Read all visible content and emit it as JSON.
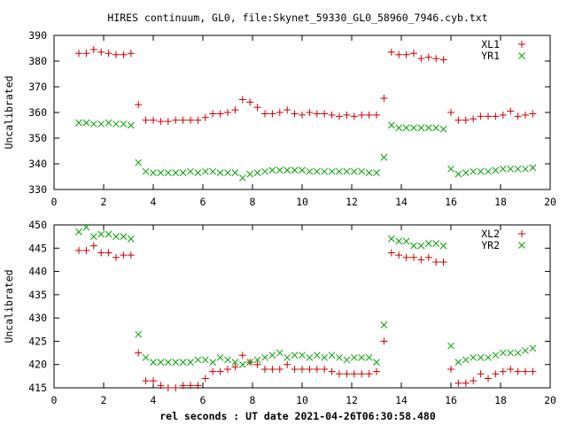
{
  "figure": {
    "title": "HIRES continuum, GL0, file:Skynet_59330_GL0_58960_7946.cyb.txt",
    "xlabel": "rel seconds : UT date 2021-04-26T06:30:58.480"
  },
  "chart_data": [
    {
      "type": "scatter",
      "ylabel": "Uncalibrated",
      "xlim": [
        0,
        20
      ],
      "ylim": [
        330,
        390
      ],
      "xticks": [
        0,
        2,
        4,
        6,
        8,
        10,
        12,
        14,
        16,
        18,
        20
      ],
      "yticks": [
        330,
        340,
        350,
        360,
        370,
        380,
        390
      ],
      "grid": false,
      "legend": "top-right",
      "series": [
        {
          "name": "XL1",
          "marker": "plus",
          "color": "#cc0000",
          "x": [
            1.0,
            1.3,
            1.6,
            1.9,
            2.2,
            2.5,
            2.8,
            3.1,
            3.4,
            3.7,
            4.0,
            4.3,
            4.6,
            4.9,
            5.2,
            5.5,
            5.8,
            6.1,
            6.4,
            6.7,
            7.0,
            7.3,
            7.6,
            7.9,
            8.2,
            8.5,
            8.8,
            9.1,
            9.4,
            9.7,
            10.0,
            10.3,
            10.6,
            10.9,
            11.2,
            11.5,
            11.8,
            12.1,
            12.4,
            12.7,
            13.0,
            13.3,
            13.6,
            13.9,
            14.2,
            14.5,
            14.8,
            15.1,
            15.4,
            15.7,
            16.0,
            16.3,
            16.6,
            16.9,
            17.2,
            17.5,
            17.8,
            18.1,
            18.4,
            18.7,
            19.0,
            19.3
          ],
          "y": [
            383,
            383,
            384.5,
            383.5,
            383,
            382.5,
            382.5,
            383,
            363,
            357,
            357,
            356.5,
            356.5,
            357,
            357,
            357,
            357,
            358,
            359.5,
            359.5,
            360,
            361,
            365,
            364,
            362,
            359.5,
            359.5,
            360,
            361,
            359.5,
            359,
            360,
            359.5,
            359.5,
            359,
            358.5,
            359,
            358.5,
            359,
            359,
            359,
            365.5,
            383.5,
            382.5,
            382.5,
            383,
            381,
            381.5,
            381,
            380.5,
            360,
            357,
            357,
            357.5,
            358.5,
            358.5,
            358.5,
            359,
            360.5,
            358.5,
            359,
            359.5
          ]
        },
        {
          "name": "YR1",
          "marker": "cross",
          "color": "#00a000",
          "x": [
            1.0,
            1.3,
            1.6,
            1.9,
            2.2,
            2.5,
            2.8,
            3.1,
            3.4,
            3.7,
            4.0,
            4.3,
            4.6,
            4.9,
            5.2,
            5.5,
            5.8,
            6.1,
            6.4,
            6.7,
            7.0,
            7.3,
            7.6,
            7.9,
            8.2,
            8.5,
            8.8,
            9.1,
            9.4,
            9.7,
            10.0,
            10.3,
            10.6,
            10.9,
            11.2,
            11.5,
            11.8,
            12.1,
            12.4,
            12.7,
            13.0,
            13.3,
            13.6,
            13.9,
            14.2,
            14.5,
            14.8,
            15.1,
            15.4,
            15.7,
            16.0,
            16.3,
            16.6,
            16.9,
            17.2,
            17.5,
            17.8,
            18.1,
            18.4,
            18.7,
            19.0,
            19.3
          ],
          "y": [
            356,
            356,
            355.5,
            355.5,
            356,
            355.5,
            355.5,
            355,
            340.5,
            337,
            336.5,
            336.5,
            336.5,
            336.5,
            336.5,
            337,
            336.5,
            337,
            337,
            336.5,
            336.5,
            336.5,
            334.5,
            336,
            336.5,
            337,
            337.5,
            337.5,
            337.5,
            337.5,
            337.5,
            337,
            337,
            337,
            337,
            337,
            337,
            337,
            337,
            336.5,
            336.5,
            342.5,
            355,
            354,
            354,
            354,
            354,
            354,
            354,
            353.5,
            338,
            336,
            336.5,
            337,
            337,
            337,
            337.5,
            338,
            338,
            338,
            338,
            338.5
          ]
        }
      ]
    },
    {
      "type": "scatter",
      "ylabel": "Uncalibrated",
      "xlim": [
        0,
        20
      ],
      "ylim": [
        415,
        450
      ],
      "xticks": [
        0,
        2,
        4,
        6,
        8,
        10,
        12,
        14,
        16,
        18,
        20
      ],
      "yticks": [
        415,
        420,
        425,
        430,
        435,
        440,
        445,
        450
      ],
      "grid": false,
      "legend": "top-right",
      "series": [
        {
          "name": "XL2",
          "marker": "plus",
          "color": "#cc0000",
          "x": [
            1.0,
            1.3,
            1.6,
            1.9,
            2.2,
            2.5,
            2.8,
            3.1,
            3.4,
            3.7,
            4.0,
            4.3,
            4.6,
            4.9,
            5.2,
            5.5,
            5.8,
            6.1,
            6.4,
            6.7,
            7.0,
            7.3,
            7.6,
            7.9,
            8.2,
            8.5,
            8.8,
            9.1,
            9.4,
            9.7,
            10.0,
            10.3,
            10.6,
            10.9,
            11.2,
            11.5,
            11.8,
            12.1,
            12.4,
            12.7,
            13.0,
            13.3,
            13.6,
            13.9,
            14.2,
            14.5,
            14.8,
            15.1,
            15.4,
            15.7,
            16.0,
            16.3,
            16.6,
            16.9,
            17.2,
            17.5,
            17.8,
            18.1,
            18.4,
            18.7,
            19.0,
            19.3
          ],
          "y": [
            444.5,
            444.5,
            445.5,
            444,
            444,
            443,
            443.5,
            443.5,
            422.5,
            416.5,
            416.5,
            415.5,
            415,
            415,
            415.5,
            415.5,
            415.5,
            417,
            418.5,
            418.5,
            419,
            419.5,
            422,
            420.5,
            420,
            419,
            419,
            419,
            420,
            419,
            419,
            419,
            419,
            419,
            418.5,
            418,
            418,
            418,
            418,
            418,
            418.5,
            425,
            444,
            443.5,
            443,
            443,
            442.5,
            443,
            442,
            442,
            419,
            416,
            416,
            416.5,
            418,
            417,
            418,
            418.5,
            419,
            418.5,
            418.5,
            418.5
          ]
        },
        {
          "name": "YR2",
          "marker": "cross",
          "color": "#00a000",
          "x": [
            1.0,
            1.3,
            1.6,
            1.9,
            2.2,
            2.5,
            2.8,
            3.1,
            3.4,
            3.7,
            4.0,
            4.3,
            4.6,
            4.9,
            5.2,
            5.5,
            5.8,
            6.1,
            6.4,
            6.7,
            7.0,
            7.3,
            7.6,
            7.9,
            8.2,
            8.5,
            8.8,
            9.1,
            9.4,
            9.7,
            10.0,
            10.3,
            10.6,
            10.9,
            11.2,
            11.5,
            11.8,
            12.1,
            12.4,
            12.7,
            13.0,
            13.3,
            13.6,
            13.9,
            14.2,
            14.5,
            14.8,
            15.1,
            15.4,
            15.7,
            16.0,
            16.3,
            16.6,
            16.9,
            17.2,
            17.5,
            17.8,
            18.1,
            18.4,
            18.7,
            19.0,
            19.3
          ],
          "y": [
            448.5,
            449.5,
            447.5,
            448,
            448,
            447.5,
            447.5,
            447,
            426.5,
            421.5,
            420.5,
            420.5,
            420.5,
            420.5,
            420.5,
            420.5,
            421,
            421,
            420.5,
            421.5,
            421,
            420.5,
            420,
            420.5,
            421,
            421.5,
            422,
            422.5,
            421.5,
            422,
            422,
            421.5,
            422,
            421.5,
            422,
            421.5,
            421,
            421.5,
            421.5,
            421.5,
            420.5,
            428.5,
            447,
            446.5,
            446.5,
            445.5,
            445.5,
            446,
            446,
            445.5,
            424,
            420.5,
            421,
            421.5,
            421.5,
            421.5,
            422,
            422.5,
            422.5,
            422.5,
            423,
            423.5
          ]
        }
      ]
    }
  ]
}
